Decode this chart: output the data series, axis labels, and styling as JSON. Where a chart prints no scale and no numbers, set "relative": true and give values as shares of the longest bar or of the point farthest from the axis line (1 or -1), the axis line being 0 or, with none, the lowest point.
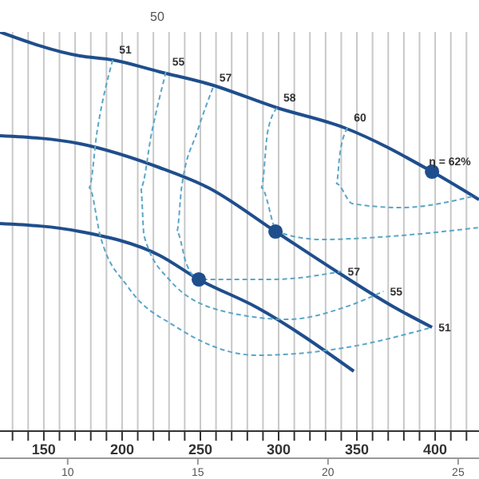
{
  "chart_data": {
    "type": "line",
    "relative": true,
    "xlim": [
      122,
      428
    ],
    "xticks": [
      {
        "value": 130,
        "label": null
      },
      {
        "value": 140,
        "label": null
      },
      150,
      {
        "value": 160,
        "label": null
      },
      {
        "value": 170,
        "label": null
      },
      {
        "value": 180,
        "label": null
      },
      {
        "value": 190,
        "label": null
      },
      200,
      {
        "value": 210,
        "label": null
      },
      {
        "value": 220,
        "label": null
      },
      {
        "value": 230,
        "label": null
      },
      {
        "value": 240,
        "label": null
      },
      250,
      {
        "value": 260,
        "label": null
      },
      {
        "value": 270,
        "label": null
      },
      {
        "value": 280,
        "label": null
      },
      {
        "value": 290,
        "label": null
      },
      300,
      {
        "value": 310,
        "label": null
      },
      {
        "value": 320,
        "label": null
      },
      {
        "value": 330,
        "label": null
      },
      {
        "value": 340,
        "label": null
      },
      350,
      {
        "value": 360,
        "label": null
      },
      {
        "value": 370,
        "label": null
      },
      {
        "value": 380,
        "label": null
      },
      {
        "value": 390,
        "label": null
      },
      400,
      {
        "value": 410,
        "label": null
      },
      {
        "value": 420,
        "label": null
      }
    ],
    "x2lim": [
      7.4,
      25.8
    ],
    "x2ticks": [
      10,
      15,
      20,
      25
    ],
    "grid": "x",
    "marker": "none",
    "series": [
      {
        "color": "#1f4e8c",
        "x": [
          122,
          173,
          194,
          224,
          255,
          299,
          342,
          398,
          428
        ],
        "values": [
          1.0,
          0.94,
          0.93,
          0.9,
          0.87,
          0.81,
          0.76,
          0.65,
          0.58
        ]
      },
      {
        "color": "#1f4e8c",
        "x": [
          122,
          173,
          224,
          255,
          298,
          337,
          374,
          398
        ],
        "values": [
          0.74,
          0.72,
          0.66,
          0.61,
          0.5,
          0.4,
          0.31,
          0.26
        ]
      },
      {
        "color": "#1f4e8c",
        "x": [
          122,
          173,
          224,
          249,
          286,
          348
        ],
        "values": [
          0.52,
          0.5,
          0.44,
          0.38,
          0.31,
          0.15
        ]
      },
      {
        "type": "line",
        "line_style": "dashed",
        "color": "#5aa6c8",
        "x": [
          194,
          184,
          179,
          186,
          204,
          235,
          286,
          344,
          398
        ],
        "values": [
          0.93,
          0.75,
          0.61,
          0.49,
          0.36,
          0.26,
          0.19,
          0.21,
          0.26
        ]
      },
      {
        "type": "line",
        "line_style": "dashed",
        "color": "#5aa6c8",
        "x": [
          228,
          219,
          212,
          214,
          230,
          265,
          306,
          342,
          367
        ],
        "values": [
          0.9,
          0.75,
          0.61,
          0.49,
          0.38,
          0.3,
          0.28,
          0.31,
          0.35
        ]
      },
      {
        "type": "line",
        "line_style": "dashed",
        "color": "#5aa6c8",
        "x": [
          258,
          248,
          238,
          235,
          241,
          249,
          296,
          340
        ],
        "values": [
          0.86,
          0.75,
          0.61,
          0.5,
          0.42,
          0.38,
          0.38,
          0.4
        ]
      },
      {
        "type": "line",
        "line_style": "dashed",
        "color": "#5aa6c8",
        "x": [
          299,
          293,
          289,
          299,
          327,
          378,
          428
        ],
        "values": [
          0.81,
          0.75,
          0.61,
          0.5,
          0.48,
          0.49,
          0.51
        ]
      },
      {
        "type": "line",
        "line_style": "dashed",
        "color": "#5aa6c8",
        "x": [
          344,
          339,
          337,
          347,
          378,
          426
        ],
        "values": [
          0.76,
          0.69,
          0.62,
          0.57,
          0.56,
          0.59
        ]
      },
      {
        "type": "scatter",
        "marker": "circle",
        "color": "#1f4e8c",
        "x": [
          398,
          298,
          249
        ],
        "values": [
          0.65,
          0.5,
          0.38
        ]
      }
    ],
    "annotations": [
      {
        "text": "51",
        "x": 194,
        "y": 0.93
      },
      {
        "text": "55",
        "x": 228,
        "y": 0.9
      },
      {
        "text": "57",
        "x": 258,
        "y": 0.86
      },
      {
        "text": "58",
        "x": 299,
        "y": 0.81
      },
      {
        "text": "60",
        "x": 344,
        "y": 0.76
      },
      {
        "text": "η = 62%",
        "x": 398,
        "y": 0.65
      },
      {
        "text": "57",
        "x": 340,
        "y": 0.4
      },
      {
        "text": "55",
        "x": 367,
        "y": 0.35
      },
      {
        "text": "51",
        "x": 398,
        "y": 0.26
      },
      "50"
    ]
  }
}
